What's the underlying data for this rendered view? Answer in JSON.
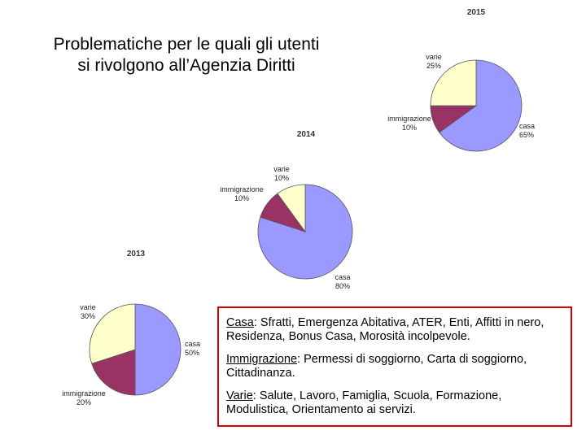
{
  "title": {
    "line1": "Problematiche per le quali gli utenti",
    "line2": "si rivolgono all’Agenzia Diritti"
  },
  "colors": {
    "casa": "#9999ff",
    "immigrazione": "#993366",
    "varie": "#ffffcc",
    "outline": "#555555",
    "legend_border": "#d40000"
  },
  "chart_data": [
    {
      "type": "pie",
      "title": "2015",
      "series": [
        {
          "name": "casa",
          "value": 65,
          "label": "65%"
        },
        {
          "name": "immigrazione",
          "value": 10,
          "label": "10%"
        },
        {
          "name": "varie",
          "value": 25,
          "label": "25%"
        }
      ]
    },
    {
      "type": "pie",
      "title": "2014",
      "series": [
        {
          "name": "casa",
          "value": 80,
          "label": "80%"
        },
        {
          "name": "immigrazione",
          "value": 10,
          "label": "10%"
        },
        {
          "name": "varie",
          "value": 10,
          "label": "10%"
        }
      ]
    },
    {
      "type": "pie",
      "title": "2013",
      "series": [
        {
          "name": "casa",
          "value": 50,
          "label": "50%"
        },
        {
          "name": "immigrazione",
          "value": 20,
          "label": "20%"
        },
        {
          "name": "varie",
          "value": 30,
          "label": "30%"
        }
      ]
    }
  ],
  "legend": {
    "casa": {
      "key": "Casa",
      "text": ": Sfratti, Emergenza Abitativa, ATER, Enti, Affitti in nero, Residenza, Bonus Casa, Morosità incolpevole."
    },
    "immigrazione": {
      "key": "Immigrazione",
      "text": ": Permessi di soggiorno, Carta di soggiorno, Cittadinanza."
    },
    "varie": {
      "key": "Varie",
      "text": ": Salute, Lavoro, Famiglia, Scuola, Formazione, Modulistica, Orientamento ai servizi."
    }
  }
}
